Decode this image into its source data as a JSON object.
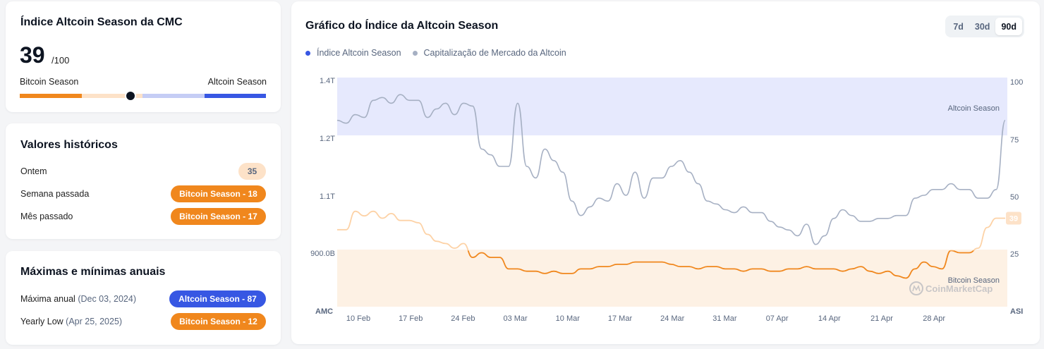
{
  "index_card": {
    "title": "Índice Altcoin Season da CMC",
    "value": "39",
    "suffix": "/100",
    "left_label": "Bitcoin Season",
    "right_label": "Altcoin Season",
    "indicator_value": 39
  },
  "history_card": {
    "title": "Valores históricos",
    "rows": [
      {
        "label": "Ontem",
        "value": "35"
      },
      {
        "label": "Semana passada",
        "value": "Bitcoin Season - 18"
      },
      {
        "label": "Mês passado",
        "value": "Bitcoin Season - 17"
      }
    ]
  },
  "annual_card": {
    "title": "Máximas e mínimas anuais",
    "rows": [
      {
        "label": "Máxima anual",
        "date": "(Dec 03, 2024)",
        "value": "Altcoin Season - 87"
      },
      {
        "label": "Yearly Low",
        "date": "(Apr 25, 2025)",
        "value": "Bitcoin Season - 12"
      }
    ]
  },
  "chart_card": {
    "title": "Gráfico do Índice da Altcoin Season",
    "ranges": [
      "7d",
      "30d",
      "90d"
    ],
    "active_range": "90d",
    "legend": [
      {
        "label": "Índice Altcoin Season",
        "color": "#3757e3"
      },
      {
        "label": "Capitalização de Mercado da Altcoin",
        "color": "#a6b0c3"
      }
    ],
    "zone_top_label": "Altcoin Season",
    "zone_bottom_label": "Bitcoin Season",
    "watermark": "CoinMarketCap",
    "left_axis_title": "AMC",
    "right_axis_title": "ASI",
    "current_badge": "39"
  },
  "colors": {
    "orange": "#f0871d",
    "orange_light": "#fde2c8",
    "blue": "#3757e3",
    "blue_light": "#c5cdf5",
    "grey_line": "#a6b0c3"
  },
  "chart_data": {
    "type": "line",
    "x_ticks": [
      "10 Feb",
      "17 Feb",
      "24 Feb",
      "03 Mar",
      "10 Mar",
      "17 Mar",
      "24 Mar",
      "31 Mar",
      "07 Apr",
      "14 Apr",
      "21 Apr",
      "28 Apr"
    ],
    "left_axis": {
      "label": "AMC",
      "ticks": [
        "1.4T",
        "1.2T",
        "1.1T",
        "900.0B"
      ]
    },
    "right_axis": {
      "label": "ASI",
      "ticks": [
        "100",
        "75",
        "50",
        "25"
      ],
      "range": [
        0,
        100
      ]
    },
    "zones": [
      {
        "name": "Altcoin Season",
        "from": 75,
        "to": 100
      },
      {
        "name": "Bitcoin Season",
        "from": 0,
        "to": 25
      }
    ],
    "series": [
      {
        "name": "Índice Altcoin Season",
        "axis": "right",
        "values": [
          34,
          34,
          42,
          40,
          42,
          39,
          41,
          38,
          38,
          37,
          32,
          29,
          28,
          26,
          28,
          22,
          24,
          22,
          22,
          17,
          17,
          16,
          16,
          15,
          16,
          15,
          15,
          17,
          17,
          18,
          18,
          19,
          19,
          20,
          20,
          20,
          20,
          19,
          18,
          18,
          17,
          18,
          18,
          17,
          17,
          16,
          17,
          17,
          16,
          16,
          17,
          17,
          18,
          17,
          17,
          17,
          16,
          17,
          18,
          16,
          15,
          16,
          14,
          13,
          17,
          20,
          18,
          17,
          25,
          24,
          24,
          26,
          35,
          39,
          39
        ]
      },
      {
        "name": "Capitalização de Mercado da Altcoin",
        "axis": "left",
        "values": [
          1.26,
          1.25,
          1.28,
          1.27,
          1.33,
          1.34,
          1.32,
          1.35,
          1.33,
          1.33,
          1.27,
          1.3,
          1.32,
          1.28,
          1.32,
          1.31,
          1.18,
          1.17,
          1.15,
          1.15,
          1.32,
          1.15,
          1.13,
          1.18,
          1.16,
          1.14,
          1.08,
          1.03,
          1.06,
          1.09,
          1.08,
          1.12,
          1.1,
          1.14,
          1.09,
          1.13,
          1.13,
          1.15,
          1.16,
          1.14,
          1.12,
          1.08,
          1.07,
          1.05,
          1.04,
          1.06,
          1.04,
          1.04,
          1.01,
          0.99,
          0.98,
          0.96,
          1.0,
          0.93,
          0.96,
          1.02,
          1.05,
          1.03,
          1.01,
          1.01,
          1.02,
          1.02,
          1.03,
          1.03,
          1.09,
          1.1,
          1.11,
          1.11,
          1.12,
          1.11,
          1.11,
          1.09,
          1.09,
          1.11,
          1.26
        ]
      }
    ]
  }
}
